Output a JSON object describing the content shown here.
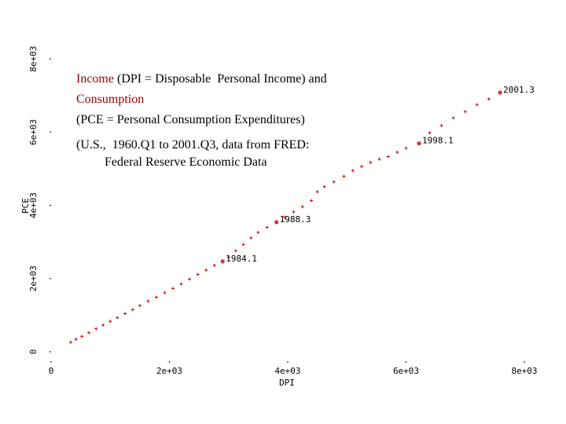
{
  "chart_data": {
    "type": "scatter",
    "title_lines": [
      [
        {
          "text": "Income",
          "color": "#a00000"
        },
        {
          "text": " (DPI = Disposable  Personal Income) and",
          "color": "#000000"
        }
      ],
      [
        {
          "text": "Consumption",
          "color": "#a00000"
        }
      ],
      [
        {
          "text": "(PCE = Personal Consumption Expenditures)",
          "color": "#000000"
        }
      ],
      [
        {
          "text": "(U.S.,  1960.Q1 to 2001.Q3, data from FRED:",
          "color": "#000000"
        }
      ],
      [
        {
          "text": "         Federal Reserve Economic Data",
          "color": "#000000"
        }
      ]
    ],
    "x_label": "DPI",
    "y_label": "PCE",
    "xlim": [
      0,
      8000
    ],
    "ylim": [
      0,
      8000
    ],
    "xticks": [
      0,
      {
        "value": 2000,
        "label": "2e+03"
      },
      {
        "value": 4000,
        "label": "4e+03"
      },
      {
        "value": 6000,
        "label": "6e+03"
      },
      {
        "value": 8000,
        "label": "8e+03"
      }
    ],
    "yticks": [
      0,
      {
        "value": 2000,
        "label": "2e+03"
      },
      {
        "value": 4000,
        "label": "4e+03"
      },
      {
        "value": 6000,
        "label": "6e+03"
      },
      {
        "value": 8000,
        "label": "8e+03"
      }
    ],
    "series": [
      {
        "color": "#cc0000",
        "x": [
          330,
          420,
          520,
          640,
          760,
          880,
          1000,
          1120,
          1250,
          1380,
          1500,
          1640,
          1780,
          1920,
          2060,
          2200,
          2340,
          2480,
          2620,
          2760,
          2900,
          3000,
          3120,
          3250,
          3380,
          3500,
          3650,
          3810,
          3950,
          4100,
          4250,
          4400,
          4500,
          4620,
          4780,
          4950,
          5100,
          5250,
          5400,
          5550,
          5700,
          5850,
          6000,
          6220,
          6400,
          6600,
          6800,
          7000,
          7200,
          7400,
          7590
        ],
        "y": [
          260,
          340,
          420,
          520,
          630,
          730,
          830,
          930,
          1040,
          1150,
          1260,
          1380,
          1490,
          1610,
          1730,
          1850,
          1980,
          2110,
          2230,
          2360,
          2470,
          2580,
          2760,
          2930,
          3110,
          3260,
          3400,
          3540,
          3680,
          3820,
          3960,
          4130,
          4370,
          4510,
          4640,
          4790,
          4950,
          5060,
          5170,
          5260,
          5330,
          5450,
          5560,
          5690,
          5980,
          6180,
          6390,
          6560,
          6750,
          6900,
          7080
        ]
      }
    ],
    "annotations": [
      {
        "text": "2001.3",
        "x": 7590,
        "y": 7080
      },
      {
        "text": "1998.1",
        "x": 6220,
        "y": 5690
      },
      {
        "text": "1988.3",
        "x": 3810,
        "y": 3540
      },
      {
        "text": "1984.1",
        "x": 2900,
        "y": 2470
      }
    ]
  }
}
